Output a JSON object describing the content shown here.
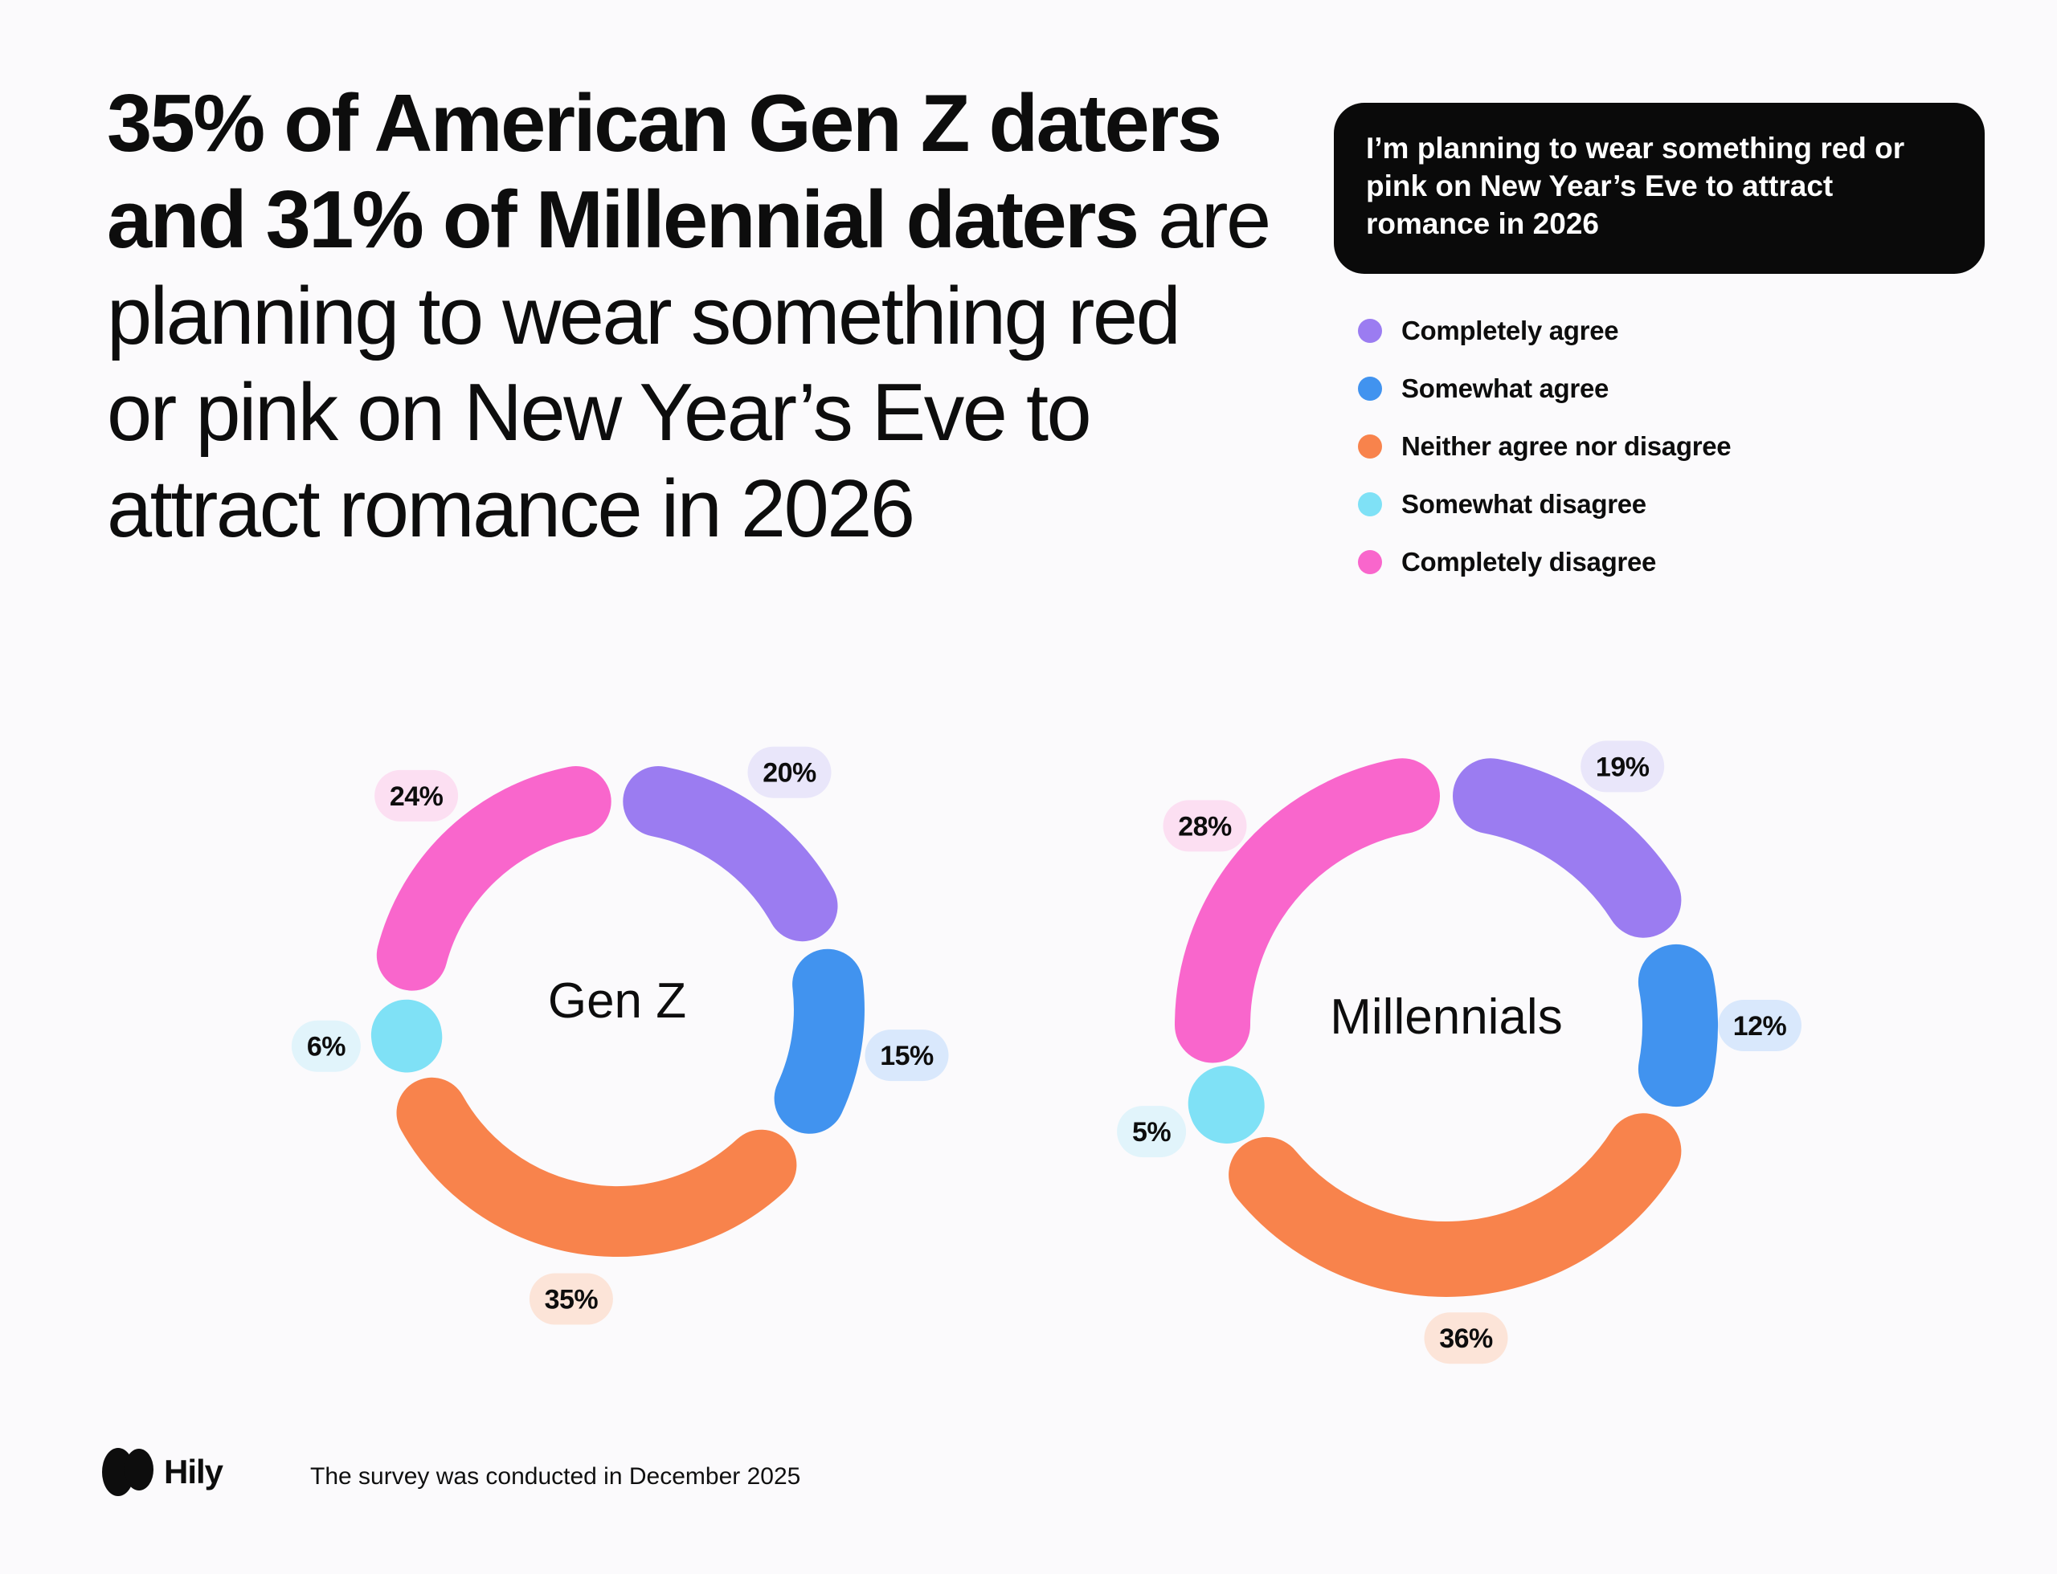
{
  "colors": {
    "background": "#fbfafc",
    "text": "#0d0d0d"
  },
  "headline": {
    "lines": [
      {
        "bold": "35% of American Gen Z daters",
        "regular": ""
      },
      {
        "bold": "and 31% of Millennial daters",
        "regular": " are"
      },
      {
        "bold": "",
        "regular": "planning to wear something red"
      },
      {
        "bold": "",
        "regular": "or pink on New Year’s Eve to"
      },
      {
        "bold": "",
        "regular": "attract romance in 2026"
      }
    ]
  },
  "question_box": {
    "bg": "#0a0a0a",
    "color": "#ffffff",
    "lines": [
      "I’m planning to wear something red or",
      "pink on New Year’s Eve to attract",
      "romance in 2026"
    ]
  },
  "legend": {
    "items": [
      {
        "label": "Completely agree",
        "color": "#9b7cf1"
      },
      {
        "label": "Somewhat agree",
        "color": "#4193ef"
      },
      {
        "label": "Neither agree nor disagree",
        "color": "#f8834c"
      },
      {
        "label": "Somewhat disagree",
        "color": "#7fe1f6"
      },
      {
        "label": "Completely disagree",
        "color": "#f966cc"
      }
    ]
  },
  "chart_data": [
    {
      "type": "pie",
      "variant": "donut",
      "slug": "gen-z",
      "title": "Gen Z",
      "unit": "%",
      "categories": [
        "Completely agree",
        "Somewhat agree",
        "Neither agree nor disagree",
        "Somewhat disagree",
        "Completely disagree"
      ],
      "values": [
        20,
        15,
        35,
        6,
        24
      ],
      "colors": [
        "#9b7cf1",
        "#4193ef",
        "#f8834c",
        "#7fe1f6",
        "#f966cc"
      ],
      "badge_colors": [
        "#e9e6fa",
        "#d9e8fc",
        "#fce4d8",
        "#e1f4fb",
        "#fcdff2"
      ]
    },
    {
      "type": "pie",
      "variant": "donut",
      "slug": "millennials",
      "title": "Millennials",
      "unit": "%",
      "categories": [
        "Completely agree",
        "Somewhat agree",
        "Neither agree nor disagree",
        "Somewhat disagree",
        "Completely disagree"
      ],
      "values": [
        19,
        12,
        36,
        5,
        28
      ],
      "colors": [
        "#9b7cf1",
        "#4193ef",
        "#f8834c",
        "#7fe1f6",
        "#f966cc"
      ],
      "badge_colors": [
        "#e9e6fa",
        "#d9e8fc",
        "#fce4d8",
        "#e1f4fb",
        "#fcdff2"
      ]
    }
  ],
  "footer": {
    "brand": "Hily",
    "note": "The survey was conducted in December 2025"
  }
}
